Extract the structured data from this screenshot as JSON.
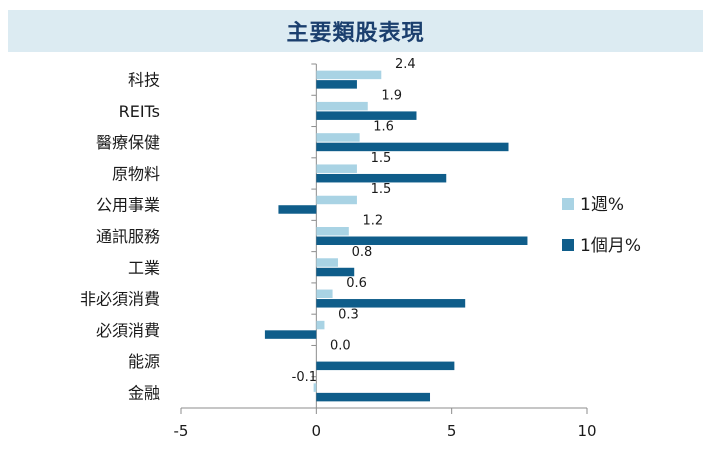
{
  "chart_data": {
    "type": "bar",
    "orientation": "horizontal",
    "title": "主要類股表現",
    "categories": [
      "科技",
      "REITs",
      "醫療保健",
      "原物料",
      "公用事業",
      "通訊服務",
      "工業",
      "非必須消費",
      "必須消費",
      "能源",
      "金融"
    ],
    "series": [
      {
        "name": "1週%",
        "color": "#a9d3e4",
        "values": [
          2.4,
          1.9,
          1.6,
          1.5,
          1.5,
          1.2,
          0.8,
          0.6,
          0.3,
          0.0,
          -0.1
        ]
      },
      {
        "name": "1個月%",
        "color": "#0f5d8a",
        "values": [
          1.5,
          3.7,
          7.1,
          4.8,
          -1.4,
          7.8,
          1.4,
          5.5,
          -1.9,
          5.1,
          4.2
        ]
      }
    ],
    "data_labels": [
      "2.4",
      "1.9",
      "1.6",
      "1.5",
      "1.5",
      "1.2",
      "0.8",
      "0.6",
      "0.3",
      "0.0",
      "-0.1"
    ],
    "xlim": [
      -5,
      10
    ],
    "x_ticks": [
      "-5",
      "0",
      "5",
      "10"
    ],
    "grid": false,
    "legend_position": "right"
  }
}
